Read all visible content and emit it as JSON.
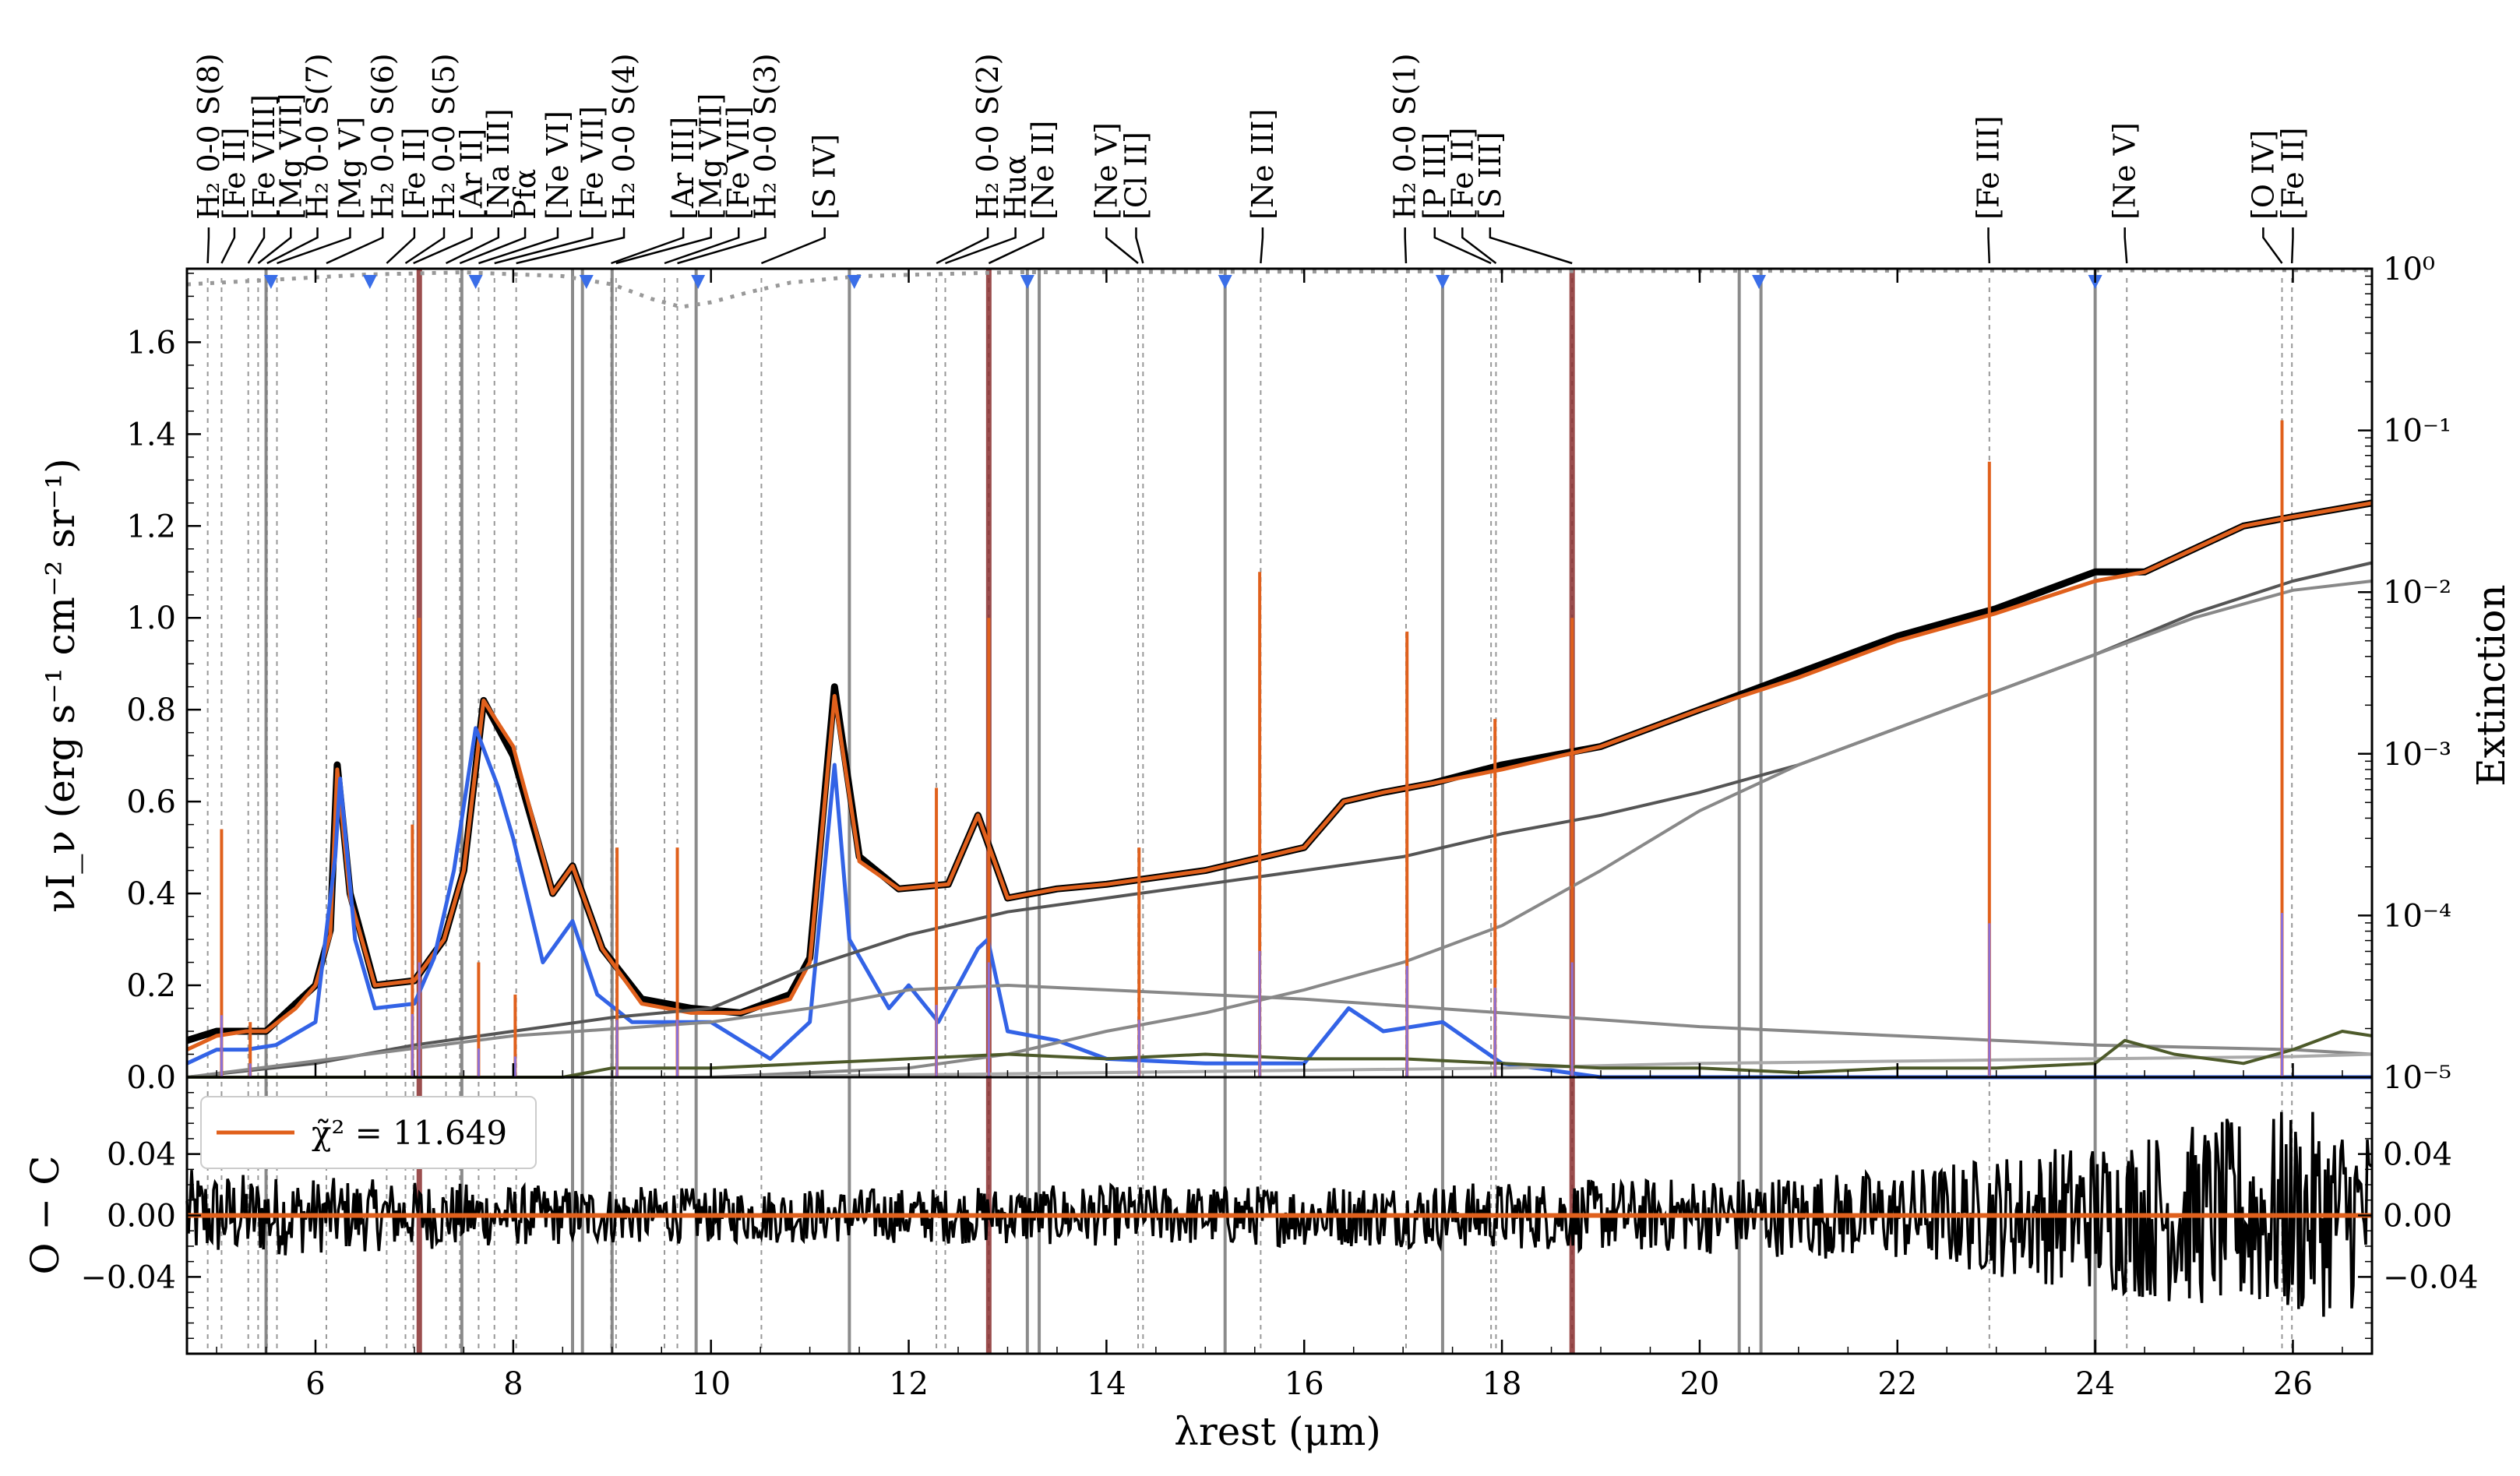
{
  "chart_data": [
    {
      "type": "line",
      "panel": "spectrum",
      "ylabel": "νI_ν (erg s⁻¹ cm⁻² sr⁻¹)",
      "y2label": "Extinction",
      "xlim": [
        4.7,
        26.8
      ],
      "ylim": [
        0,
        1.76
      ],
      "xticks": [
        6,
        8,
        10,
        12,
        14,
        16,
        18,
        20,
        22,
        24,
        26
      ],
      "yticks": [
        "0.0",
        "0.2",
        "0.4",
        "0.6",
        "0.8",
        "1.0",
        "1.2",
        "1.4",
        "1.6"
      ],
      "y2_scale": "log",
      "y2lim": [
        1e-05,
        1
      ],
      "y2ticks": [
        {
          "value": 1e-05,
          "label": "10⁻⁵"
        },
        {
          "value": 0.0001,
          "label": "10⁻⁴"
        },
        {
          "value": 0.001,
          "label": "10⁻³"
        },
        {
          "value": 0.01,
          "label": "10⁻²"
        },
        {
          "value": 0.1,
          "label": "10⁻¹"
        },
        {
          "value": 1,
          "label": "10⁰"
        }
      ],
      "series": [
        {
          "role": "observed",
          "color": "#000000",
          "x": [
            4.7,
            5.0,
            5.3,
            5.5,
            5.8,
            6.0,
            6.15,
            6.22,
            6.35,
            6.6,
            7.0,
            7.3,
            7.5,
            7.7,
            8.0,
            8.4,
            8.6,
            8.9,
            9.3,
            9.8,
            10.3,
            10.8,
            11.0,
            11.25,
            11.5,
            11.9,
            12.4,
            12.7,
            13.0,
            13.5,
            14.0,
            15.0,
            16.0,
            16.4,
            16.8,
            17.3,
            18.0,
            19.0,
            20.0,
            21.0,
            22.0,
            23.0,
            24.0,
            24.5,
            25.0,
            25.5,
            26.0,
            26.8
          ],
          "y": [
            0.08,
            0.1,
            0.1,
            0.1,
            0.16,
            0.2,
            0.32,
            0.68,
            0.4,
            0.2,
            0.21,
            0.3,
            0.45,
            0.82,
            0.7,
            0.4,
            0.46,
            0.28,
            0.17,
            0.15,
            0.14,
            0.18,
            0.26,
            0.85,
            0.48,
            0.41,
            0.42,
            0.57,
            0.39,
            0.41,
            0.42,
            0.45,
            0.5,
            0.6,
            0.62,
            0.64,
            0.68,
            0.72,
            0.8,
            0.88,
            0.96,
            1.02,
            1.1,
            1.1,
            1.15,
            1.2,
            1.22,
            1.25
          ]
        },
        {
          "role": "model",
          "color": "#e0601c",
          "x": [
            4.7,
            5.0,
            5.3,
            5.5,
            5.8,
            6.0,
            6.15,
            6.22,
            6.35,
            6.6,
            7.0,
            7.3,
            7.5,
            7.7,
            8.0,
            8.4,
            8.6,
            8.9,
            9.3,
            9.8,
            10.3,
            10.8,
            11.0,
            11.25,
            11.5,
            11.9,
            12.4,
            12.7,
            13.0,
            13.5,
            14.0,
            15.0,
            16.0,
            16.4,
            16.8,
            17.3,
            18.0,
            19.0,
            20.0,
            21.0,
            22.0,
            23.0,
            24.0,
            24.5,
            25.0,
            25.5,
            26.0,
            26.8
          ],
          "y": [
            0.06,
            0.09,
            0.1,
            0.1,
            0.15,
            0.2,
            0.31,
            0.67,
            0.39,
            0.2,
            0.21,
            0.3,
            0.45,
            0.82,
            0.72,
            0.4,
            0.46,
            0.28,
            0.16,
            0.14,
            0.14,
            0.17,
            0.25,
            0.83,
            0.47,
            0.41,
            0.42,
            0.57,
            0.39,
            0.41,
            0.42,
            0.45,
            0.5,
            0.6,
            0.62,
            0.64,
            0.67,
            0.72,
            0.8,
            0.87,
            0.95,
            1.01,
            1.08,
            1.1,
            1.15,
            1.2,
            1.22,
            1.25
          ]
        },
        {
          "role": "pah",
          "color": "#3363e6",
          "x": [
            4.7,
            5.0,
            5.3,
            5.6,
            6.0,
            6.2,
            6.25,
            6.4,
            6.6,
            7.0,
            7.2,
            7.4,
            7.62,
            7.85,
            8.0,
            8.3,
            8.6,
            8.85,
            9.2,
            10.0,
            10.6,
            11.0,
            11.25,
            11.4,
            11.8,
            12.0,
            12.3,
            12.7,
            12.8,
            13.0,
            13.5,
            14.0,
            15.0,
            16.0,
            16.45,
            16.8,
            17.4,
            18.0,
            19.0,
            22.0,
            26.8
          ],
          "y": [
            0.03,
            0.06,
            0.06,
            0.07,
            0.12,
            0.48,
            0.65,
            0.3,
            0.15,
            0.16,
            0.26,
            0.45,
            0.76,
            0.63,
            0.52,
            0.25,
            0.34,
            0.18,
            0.12,
            0.12,
            0.04,
            0.12,
            0.68,
            0.3,
            0.15,
            0.2,
            0.12,
            0.28,
            0.3,
            0.1,
            0.08,
            0.04,
            0.03,
            0.03,
            0.15,
            0.1,
            0.12,
            0.03,
            0.0,
            0.0,
            0.0
          ]
        },
        {
          "role": "continuum",
          "color": "#555555",
          "x": [
            4.7,
            6.0,
            7.0,
            8.0,
            9.0,
            10.0,
            11.0,
            12.0,
            13.0,
            14.0,
            15.0,
            16.0,
            17.0,
            18.0,
            19.0,
            20.0,
            21.0,
            22.0,
            23.0,
            24.0,
            25.0,
            26.0,
            26.8
          ],
          "y": [
            0.0,
            0.03,
            0.07,
            0.1,
            0.13,
            0.15,
            0.24,
            0.31,
            0.36,
            0.39,
            0.42,
            0.45,
            0.48,
            0.53,
            0.57,
            0.62,
            0.68,
            0.76,
            0.84,
            0.92,
            1.01,
            1.08,
            1.12
          ]
        },
        {
          "role": "continuum",
          "color": "#888888",
          "x": [
            4.7,
            8.0,
            10.0,
            11.0,
            12.0,
            13.0,
            14.0,
            16.0,
            18.0,
            20.0,
            22.0,
            24.0,
            26.0,
            26.8
          ],
          "y": [
            0.0,
            0.09,
            0.12,
            0.15,
            0.19,
            0.2,
            0.19,
            0.17,
            0.14,
            0.11,
            0.09,
            0.07,
            0.06,
            0.05
          ]
        },
        {
          "role": "continuum",
          "color": "#888888",
          "x": [
            4.7,
            10.0,
            11.0,
            12.0,
            13.0,
            14.0,
            15.0,
            16.0,
            17.0,
            18.0,
            19.0,
            20.0,
            21.0,
            22.0,
            23.0,
            24.0,
            25.0,
            26.0,
            26.8
          ],
          "y": [
            0.0,
            0.0,
            0.01,
            0.02,
            0.05,
            0.1,
            0.14,
            0.19,
            0.25,
            0.33,
            0.45,
            0.58,
            0.68,
            0.76,
            0.84,
            0.92,
            1.0,
            1.06,
            1.08
          ]
        },
        {
          "role": "continuum",
          "color": "#aaaaaa",
          "x": [
            4.7,
            10.0,
            14.0,
            18.0,
            20.0,
            22.0,
            24.0,
            26.0,
            26.8
          ],
          "y": [
            0.0,
            0.0,
            0.01,
            0.02,
            0.03,
            0.035,
            0.04,
            0.045,
            0.05
          ]
        },
        {
          "role": "silicate",
          "color": "#4d5a2a",
          "x": [
            4.7,
            8.5,
            9.0,
            10.0,
            11.0,
            12.0,
            13.0,
            14.0,
            15.0,
            16.0,
            17.0,
            18.0,
            19.0,
            20.0,
            21.0,
            22.0,
            23.0,
            24.0,
            24.3,
            24.8,
            25.5,
            26.0,
            26.5,
            26.8
          ],
          "y": [
            0.0,
            0.0,
            0.02,
            0.02,
            0.03,
            0.04,
            0.05,
            0.04,
            0.05,
            0.04,
            0.04,
            0.03,
            0.02,
            0.02,
            0.01,
            0.02,
            0.02,
            0.03,
            0.08,
            0.05,
            0.03,
            0.06,
            0.1,
            0.09
          ]
        },
        {
          "role": "extinction",
          "color": "#999999",
          "dash": true,
          "axis": "y2",
          "x": [
            4.7,
            5.5,
            6.5,
            7.5,
            8.5,
            9.0,
            9.4,
            9.7,
            10.0,
            10.4,
            10.8,
            11.5,
            13.0,
            16.0,
            20.0,
            26.8
          ],
          "y": [
            0.8,
            0.85,
            0.92,
            0.95,
            0.9,
            0.8,
            0.65,
            0.58,
            0.62,
            0.72,
            0.82,
            0.9,
            0.95,
            0.96,
            0.97,
            0.98
          ]
        }
      ],
      "lines": [
        {
          "x": 5.05,
          "y": 0.54
        },
        {
          "x": 5.34,
          "y": 0.12
        },
        {
          "x": 6.98,
          "y": 0.55
        },
        {
          "x": 7.05,
          "y": 1.0
        },
        {
          "x": 7.65,
          "y": 0.25
        },
        {
          "x": 8.02,
          "y": 0.18
        },
        {
          "x": 9.05,
          "y": 0.5
        },
        {
          "x": 9.66,
          "y": 0.5
        },
        {
          "x": 12.28,
          "y": 0.63
        },
        {
          "x": 12.81,
          "y": 1.0
        },
        {
          "x": 14.33,
          "y": 0.5
        },
        {
          "x": 15.55,
          "y": 1.1
        },
        {
          "x": 17.04,
          "y": 0.97
        },
        {
          "x": 17.93,
          "y": 0.78
        },
        {
          "x": 18.71,
          "y": 1.0
        },
        {
          "x": 22.93,
          "y": 1.34
        },
        {
          "x": 25.89,
          "y": 1.43
        }
      ],
      "masks": [
        {
          "x": 5.5,
          "color": "#777777"
        },
        {
          "x": 7.05,
          "color": "#8a3030"
        },
        {
          "x": 7.48,
          "color": "#777777"
        },
        {
          "x": 8.6,
          "color": "#777777"
        },
        {
          "x": 8.7,
          "color": "#777777"
        },
        {
          "x": 9.0,
          "color": "#777777"
        },
        {
          "x": 9.85,
          "color": "#777777"
        },
        {
          "x": 11.4,
          "color": "#777777"
        },
        {
          "x": 12.81,
          "color": "#8a3030"
        },
        {
          "x": 13.2,
          "color": "#777777"
        },
        {
          "x": 13.32,
          "color": "#777777"
        },
        {
          "x": 15.2,
          "color": "#777777"
        },
        {
          "x": 17.4,
          "color": "#777777"
        },
        {
          "x": 18.71,
          "color": "#8a3030"
        },
        {
          "x": 20.4,
          "color": "#777777"
        },
        {
          "x": 20.62,
          "color": "#777777"
        },
        {
          "x": 24.0,
          "color": "#777777"
        }
      ],
      "triangles": [
        5.55,
        6.55,
        7.62,
        8.74,
        9.87,
        11.45,
        13.2,
        15.2,
        17.4,
        20.6,
        24.0
      ],
      "line_ids": [
        {
          "x": 4.91,
          "label_x": 4.92,
          "label": "H₂ 0-0 S(8)"
        },
        {
          "x": 5.05,
          "label_x": 5.18,
          "label": "[Fe II]"
        },
        {
          "x": 5.32,
          "label_x": 5.48,
          "label": "[Fe VIII]"
        },
        {
          "x": 5.42,
          "label_x": 5.75,
          "label": "[Mg VII]"
        },
        {
          "x": 5.51,
          "label_x": 6.02,
          "label": "H₂ 0-0 S(7)"
        },
        {
          "x": 5.61,
          "label_x": 6.35,
          "label": "[Mg V]"
        },
        {
          "x": 6.11,
          "label_x": 6.68,
          "label": "H₂ 0-0 S(6)"
        },
        {
          "x": 6.72,
          "label_x": 7.0,
          "label": "[Fe II]"
        },
        {
          "x": 6.91,
          "label_x": 7.3,
          "label": "H₂ 0-0 S(5)"
        },
        {
          "x": 6.99,
          "label_x": 7.58,
          "label": "[Ar II]"
        },
        {
          "x": 7.32,
          "label_x": 7.85,
          "label": "[Na III]"
        },
        {
          "x": 7.46,
          "label_x": 8.12,
          "label": "Pfα"
        },
        {
          "x": 7.65,
          "label_x": 8.45,
          "label": "[Ne VI]"
        },
        {
          "x": 7.81,
          "label_x": 8.8,
          "label": "[Fe VII]"
        },
        {
          "x": 8.03,
          "label_x": 9.12,
          "label": "H₂ 0-0 S(4)"
        },
        {
          "x": 8.99,
          "label_x": 9.72,
          "label": "[Ar III]"
        },
        {
          "x": 9.04,
          "label_x": 10.0,
          "label": "[Mg VII]"
        },
        {
          "x": 9.53,
          "label_x": 10.28,
          "label": "[Fe VII]"
        },
        {
          "x": 9.66,
          "label_x": 10.55,
          "label": "H₂ 0-0 S(3)"
        },
        {
          "x": 10.51,
          "label_x": 11.15,
          "label": "[S IV]"
        },
        {
          "x": 12.28,
          "label_x": 12.8,
          "label": "H₂ 0-0 S(2)"
        },
        {
          "x": 12.37,
          "label_x": 13.08,
          "label": "Huα"
        },
        {
          "x": 12.81,
          "label_x": 13.36,
          "label": "[Ne II]"
        },
        {
          "x": 14.32,
          "label_x": 14.0,
          "label": "[Ne V]"
        },
        {
          "x": 14.37,
          "label_x": 14.3,
          "label": "[Cl II]"
        },
        {
          "x": 15.56,
          "label_x": 15.58,
          "label": "[Ne III]"
        },
        {
          "x": 17.03,
          "label_x": 17.02,
          "label": "H₂ 0-0 S(1)"
        },
        {
          "x": 17.89,
          "label_x": 17.32,
          "label": "[P III]"
        },
        {
          "x": 17.94,
          "label_x": 17.6,
          "label": "[Fe II]"
        },
        {
          "x": 18.71,
          "label_x": 17.88,
          "label": "[S III]"
        },
        {
          "x": 22.93,
          "label_x": 22.92,
          "label": "[Fe III]"
        },
        {
          "x": 24.32,
          "label_x": 24.3,
          "label": "[Ne V]"
        },
        {
          "x": 25.89,
          "label_x": 25.7,
          "label": "[O IV]"
        },
        {
          "x": 25.99,
          "label_x": 26.0,
          "label": "[Fe II]"
        }
      ]
    },
    {
      "type": "line",
      "panel": "residuals",
      "ylabel": "O − C",
      "xlabel": "λrest (μm)",
      "xlim": [
        4.7,
        26.8
      ],
      "ylim": [
        -0.09,
        0.09
      ],
      "yticks": [
        "0.04",
        "0.00",
        "−0.04"
      ],
      "ytick_values": [
        0.04,
        0.0,
        -0.04
      ],
      "legend": {
        "label": "χ̃² = 11.649",
        "position": "upper-left",
        "color": "#e0601c"
      },
      "residual_envelope": {
        "x": [
          4.7,
          6.0,
          8.0,
          10.0,
          12.0,
          14.0,
          16.0,
          18.0,
          20.0,
          22.0,
          23.0,
          24.0,
          25.0,
          26.0,
          26.8
        ],
        "amplitude": [
          0.03,
          0.025,
          0.02,
          0.018,
          0.018,
          0.02,
          0.02,
          0.022,
          0.025,
          0.03,
          0.04,
          0.05,
          0.06,
          0.07,
          0.06
        ]
      }
    }
  ]
}
